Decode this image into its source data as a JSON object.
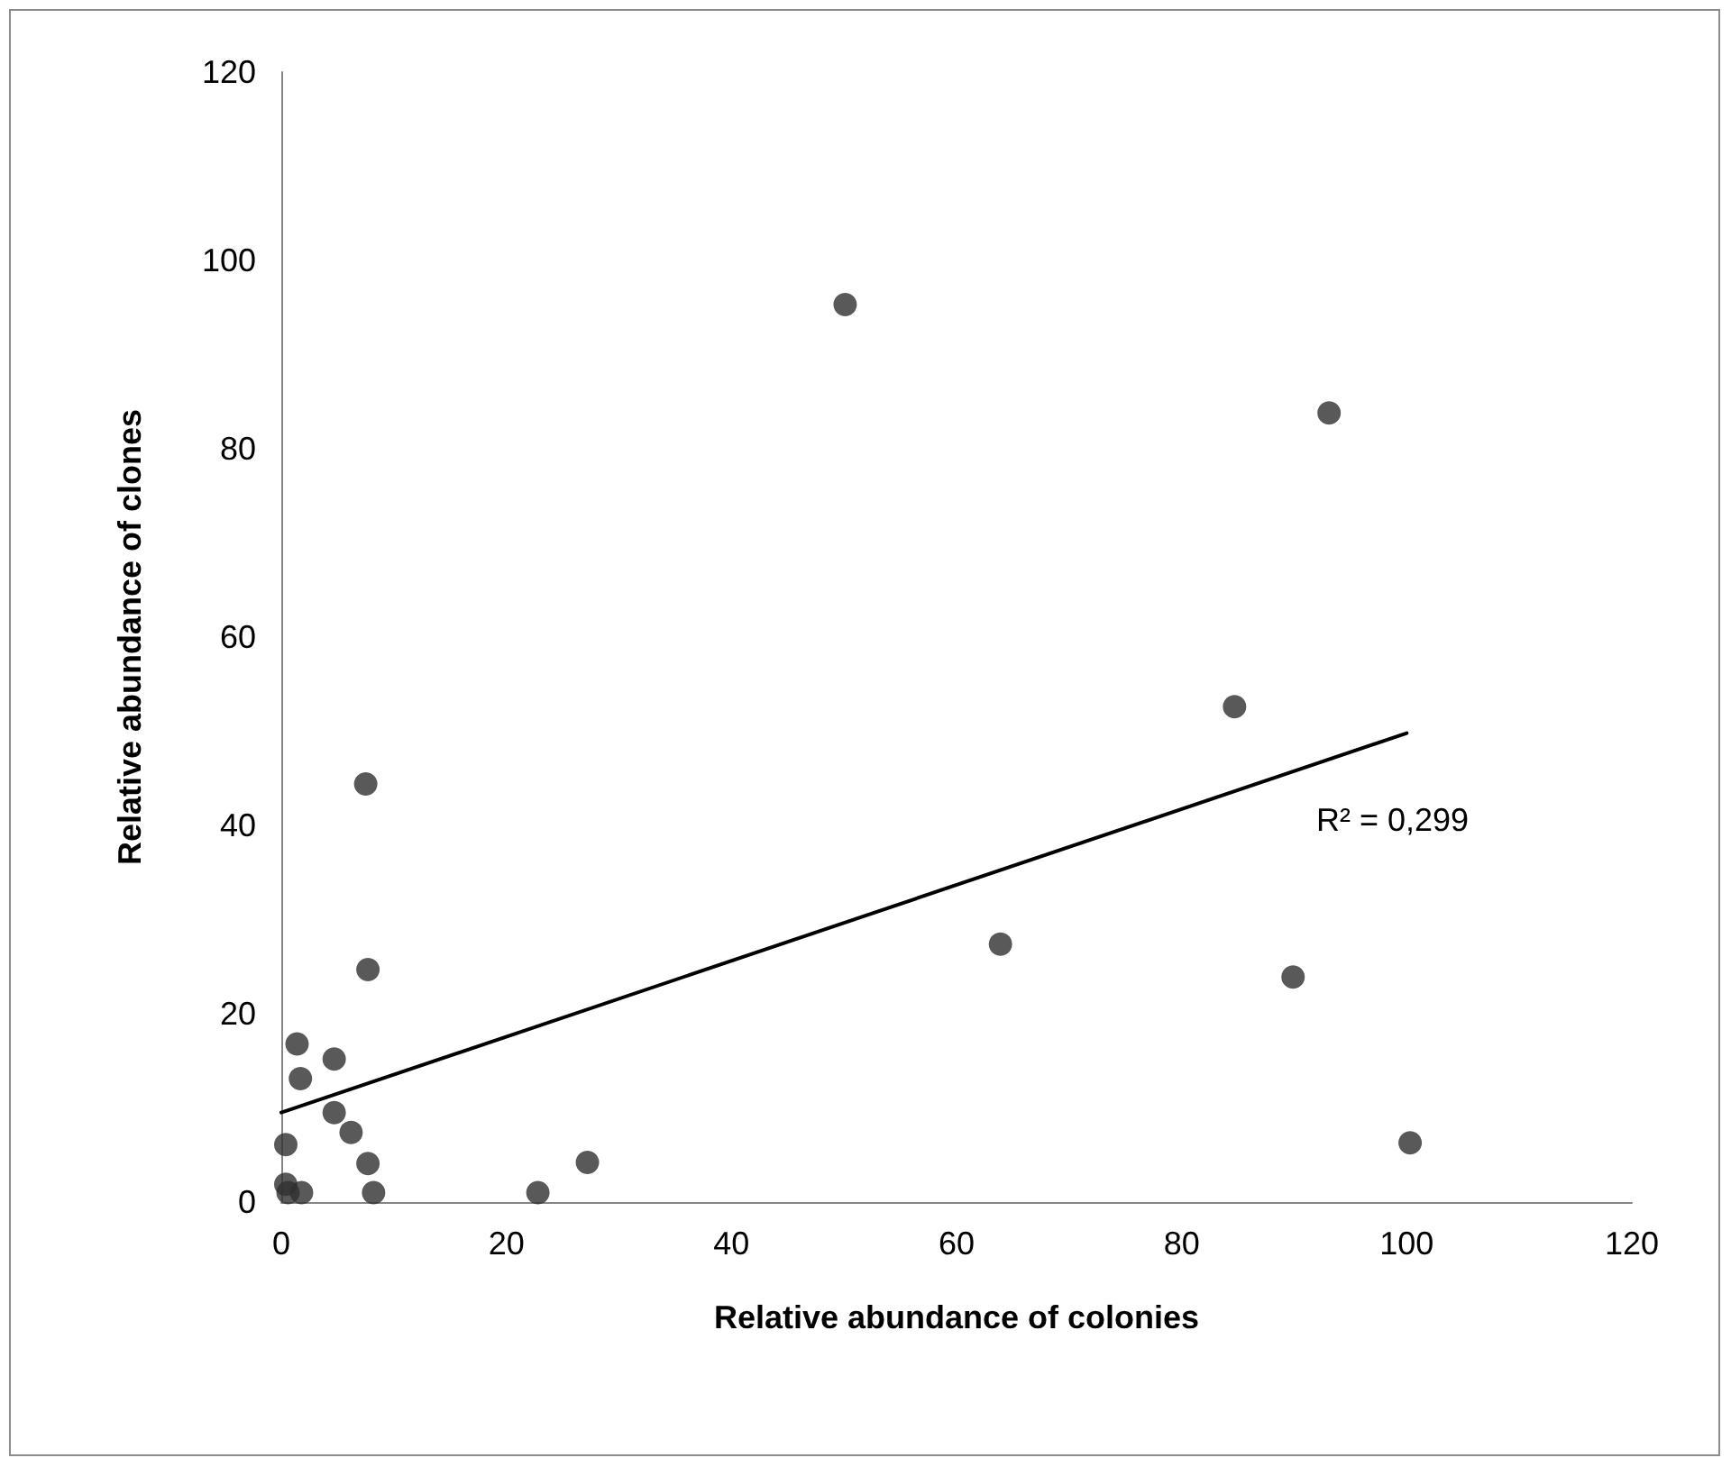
{
  "chart_data": {
    "type": "scatter",
    "xlabel": "Relative abundance of colonies",
    "ylabel": "Relative abundance of clones",
    "xlim": [
      0,
      120
    ],
    "xticks": [
      0,
      20,
      40,
      60,
      80,
      100,
      120
    ],
    "ylim": [
      0,
      120
    ],
    "yticks": [
      0,
      20,
      40,
      60,
      80,
      100,
      120
    ],
    "grid": false,
    "marker": "circle",
    "series": [
      {
        "type": "scatter",
        "color": "#303030",
        "x": [
          50.1,
          93.1,
          84.7,
          63.9,
          89.9,
          100.3,
          7.5,
          7.7,
          1.4,
          4.7,
          1.7,
          4.7,
          6.2,
          0.4,
          7.7,
          27.2,
          8.2,
          22.8,
          0.4,
          0.6,
          1.8
        ],
        "values": [
          95.3,
          83.8,
          52.6,
          27.4,
          23.9,
          6.3,
          44.4,
          24.7,
          16.8,
          15.2,
          13.1,
          9.5,
          7.4,
          6.1,
          4.1,
          4.2,
          1.0,
          1.0,
          1.9,
          1.0,
          1.0
        ]
      },
      {
        "type": "line",
        "color": "#000000",
        "marker": "none",
        "line_style": "solid",
        "x": [
          0,
          100
        ],
        "values": [
          9.5,
          49.8
        ]
      }
    ],
    "annotations": [
      "R² = 0,299"
    ]
  }
}
